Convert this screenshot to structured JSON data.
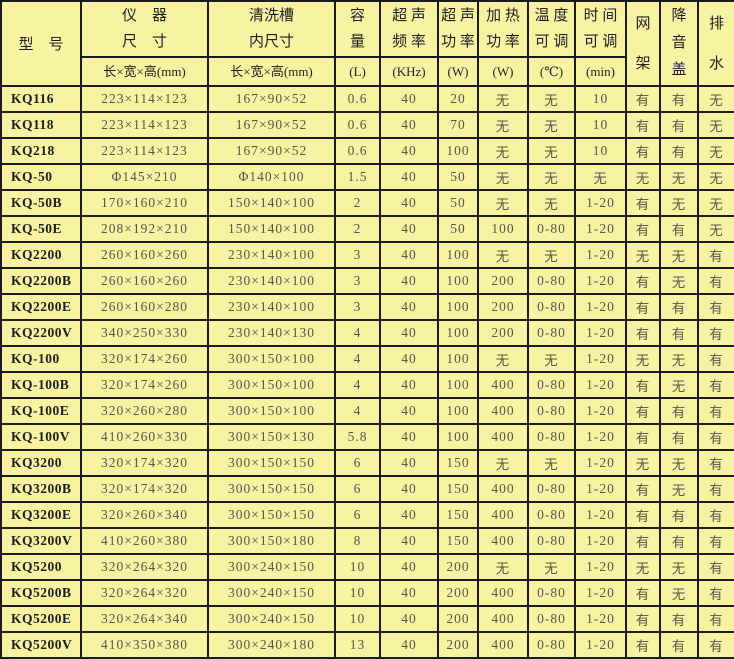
{
  "colors": {
    "background": "#f7f3a3",
    "grid": "#1c1c1c",
    "value_text": "#56544a",
    "model_text": "#1d1d1d"
  },
  "table": {
    "header": {
      "model": "型　号",
      "instrument": "仪　器\n尺　寸",
      "instrument_unit": "长×宽×高(mm)",
      "tank": "清洗槽\n内尺寸",
      "tank_unit": "长×宽×高(mm)",
      "capacity": "容\n量",
      "capacity_unit": "(L)",
      "frequency": "超 声\n频 率",
      "frequency_unit": "(KHz)",
      "ultrasonic_power": "超 声\n功 率",
      "ultrasonic_power_unit": "(W)",
      "heating_power": "加 热\n功 率",
      "heating_power_unit": "(W)",
      "temperature": "温 度\n可 调",
      "temperature_unit": "(℃)",
      "time": "时 间\n可 调",
      "time_unit": "(min)",
      "rack": "网\n架",
      "cover": "降\n音\n盖",
      "drain": "排\n水"
    },
    "rows": [
      [
        "KQ116",
        "223×114×123",
        "167×90×52",
        "0.6",
        "40",
        "20",
        "无",
        "无",
        "10",
        "有",
        "有",
        "无"
      ],
      [
        "KQ118",
        "223×114×123",
        "167×90×52",
        "0.6",
        "40",
        "70",
        "无",
        "无",
        "10",
        "有",
        "有",
        "无"
      ],
      [
        "KQ218",
        "223×114×123",
        "167×90×52",
        "0.6",
        "40",
        "100",
        "无",
        "无",
        "10",
        "有",
        "有",
        "无"
      ],
      [
        "KQ-50",
        "Φ145×210",
        "Φ140×100",
        "1.5",
        "40",
        "50",
        "无",
        "无",
        "无",
        "无",
        "无",
        "无"
      ],
      [
        "KQ-50B",
        "170×160×210",
        "150×140×100",
        "2",
        "40",
        "50",
        "无",
        "无",
        "1-20",
        "有",
        "无",
        "无"
      ],
      [
        "KQ-50E",
        "208×192×210",
        "150×140×100",
        "2",
        "40",
        "50",
        "100",
        "0-80",
        "1-20",
        "有",
        "有",
        "无"
      ],
      [
        "KQ2200",
        "260×160×260",
        "230×140×100",
        "3",
        "40",
        "100",
        "无",
        "无",
        "1-20",
        "无",
        "无",
        "有"
      ],
      [
        "KQ2200B",
        "260×160×260",
        "230×140×100",
        "3",
        "40",
        "100",
        "200",
        "0-80",
        "1-20",
        "有",
        "无",
        "有"
      ],
      [
        "KQ2200E",
        "260×160×280",
        "230×140×100",
        "3",
        "40",
        "100",
        "200",
        "0-80",
        "1-20",
        "有",
        "有",
        "有"
      ],
      [
        "KQ2200V",
        "340×250×330",
        "230×140×130",
        "4",
        "40",
        "100",
        "200",
        "0-80",
        "1-20",
        "有",
        "有",
        "有"
      ],
      [
        "KQ-100",
        "320×174×260",
        "300×150×100",
        "4",
        "40",
        "100",
        "无",
        "无",
        "1-20",
        "无",
        "无",
        "有"
      ],
      [
        "KQ-100B",
        "320×174×260",
        "300×150×100",
        "4",
        "40",
        "100",
        "400",
        "0-80",
        "1-20",
        "有",
        "无",
        "有"
      ],
      [
        "KQ-100E",
        "320×260×280",
        "300×150×100",
        "4",
        "40",
        "100",
        "400",
        "0-80",
        "1-20",
        "有",
        "有",
        "有"
      ],
      [
        "KQ-100V",
        "410×260×330",
        "300×150×130",
        "5.8",
        "40",
        "100",
        "400",
        "0-80",
        "1-20",
        "有",
        "有",
        "有"
      ],
      [
        "KQ3200",
        "320×174×320",
        "300×150×150",
        "6",
        "40",
        "150",
        "无",
        "无",
        "1-20",
        "无",
        "无",
        "有"
      ],
      [
        "KQ3200B",
        "320×174×320",
        "300×150×150",
        "6",
        "40",
        "150",
        "400",
        "0-80",
        "1-20",
        "有",
        "无",
        "有"
      ],
      [
        "KQ3200E",
        "320×260×340",
        "300×150×150",
        "6",
        "40",
        "150",
        "400",
        "0-80",
        "1-20",
        "有",
        "有",
        "有"
      ],
      [
        "KQ3200V",
        "410×260×380",
        "300×150×180",
        "8",
        "40",
        "150",
        "400",
        "0-80",
        "1-20",
        "有",
        "有",
        "有"
      ],
      [
        "KQ5200",
        "320×264×320",
        "300×240×150",
        "10",
        "40",
        "200",
        "无",
        "无",
        "1-20",
        "无",
        "无",
        "有"
      ],
      [
        "KQ5200B",
        "320×264×320",
        "300×240×150",
        "10",
        "40",
        "200",
        "400",
        "0-80",
        "1-20",
        "有",
        "无",
        "有"
      ],
      [
        "KQ5200E",
        "320×264×340",
        "300×240×150",
        "10",
        "40",
        "200",
        "400",
        "0-80",
        "1-20",
        "有",
        "有",
        "有"
      ],
      [
        "KQ5200V",
        "410×350×380",
        "300×240×180",
        "13",
        "40",
        "200",
        "400",
        "0-80",
        "1-20",
        "有",
        "有",
        "有"
      ]
    ]
  }
}
